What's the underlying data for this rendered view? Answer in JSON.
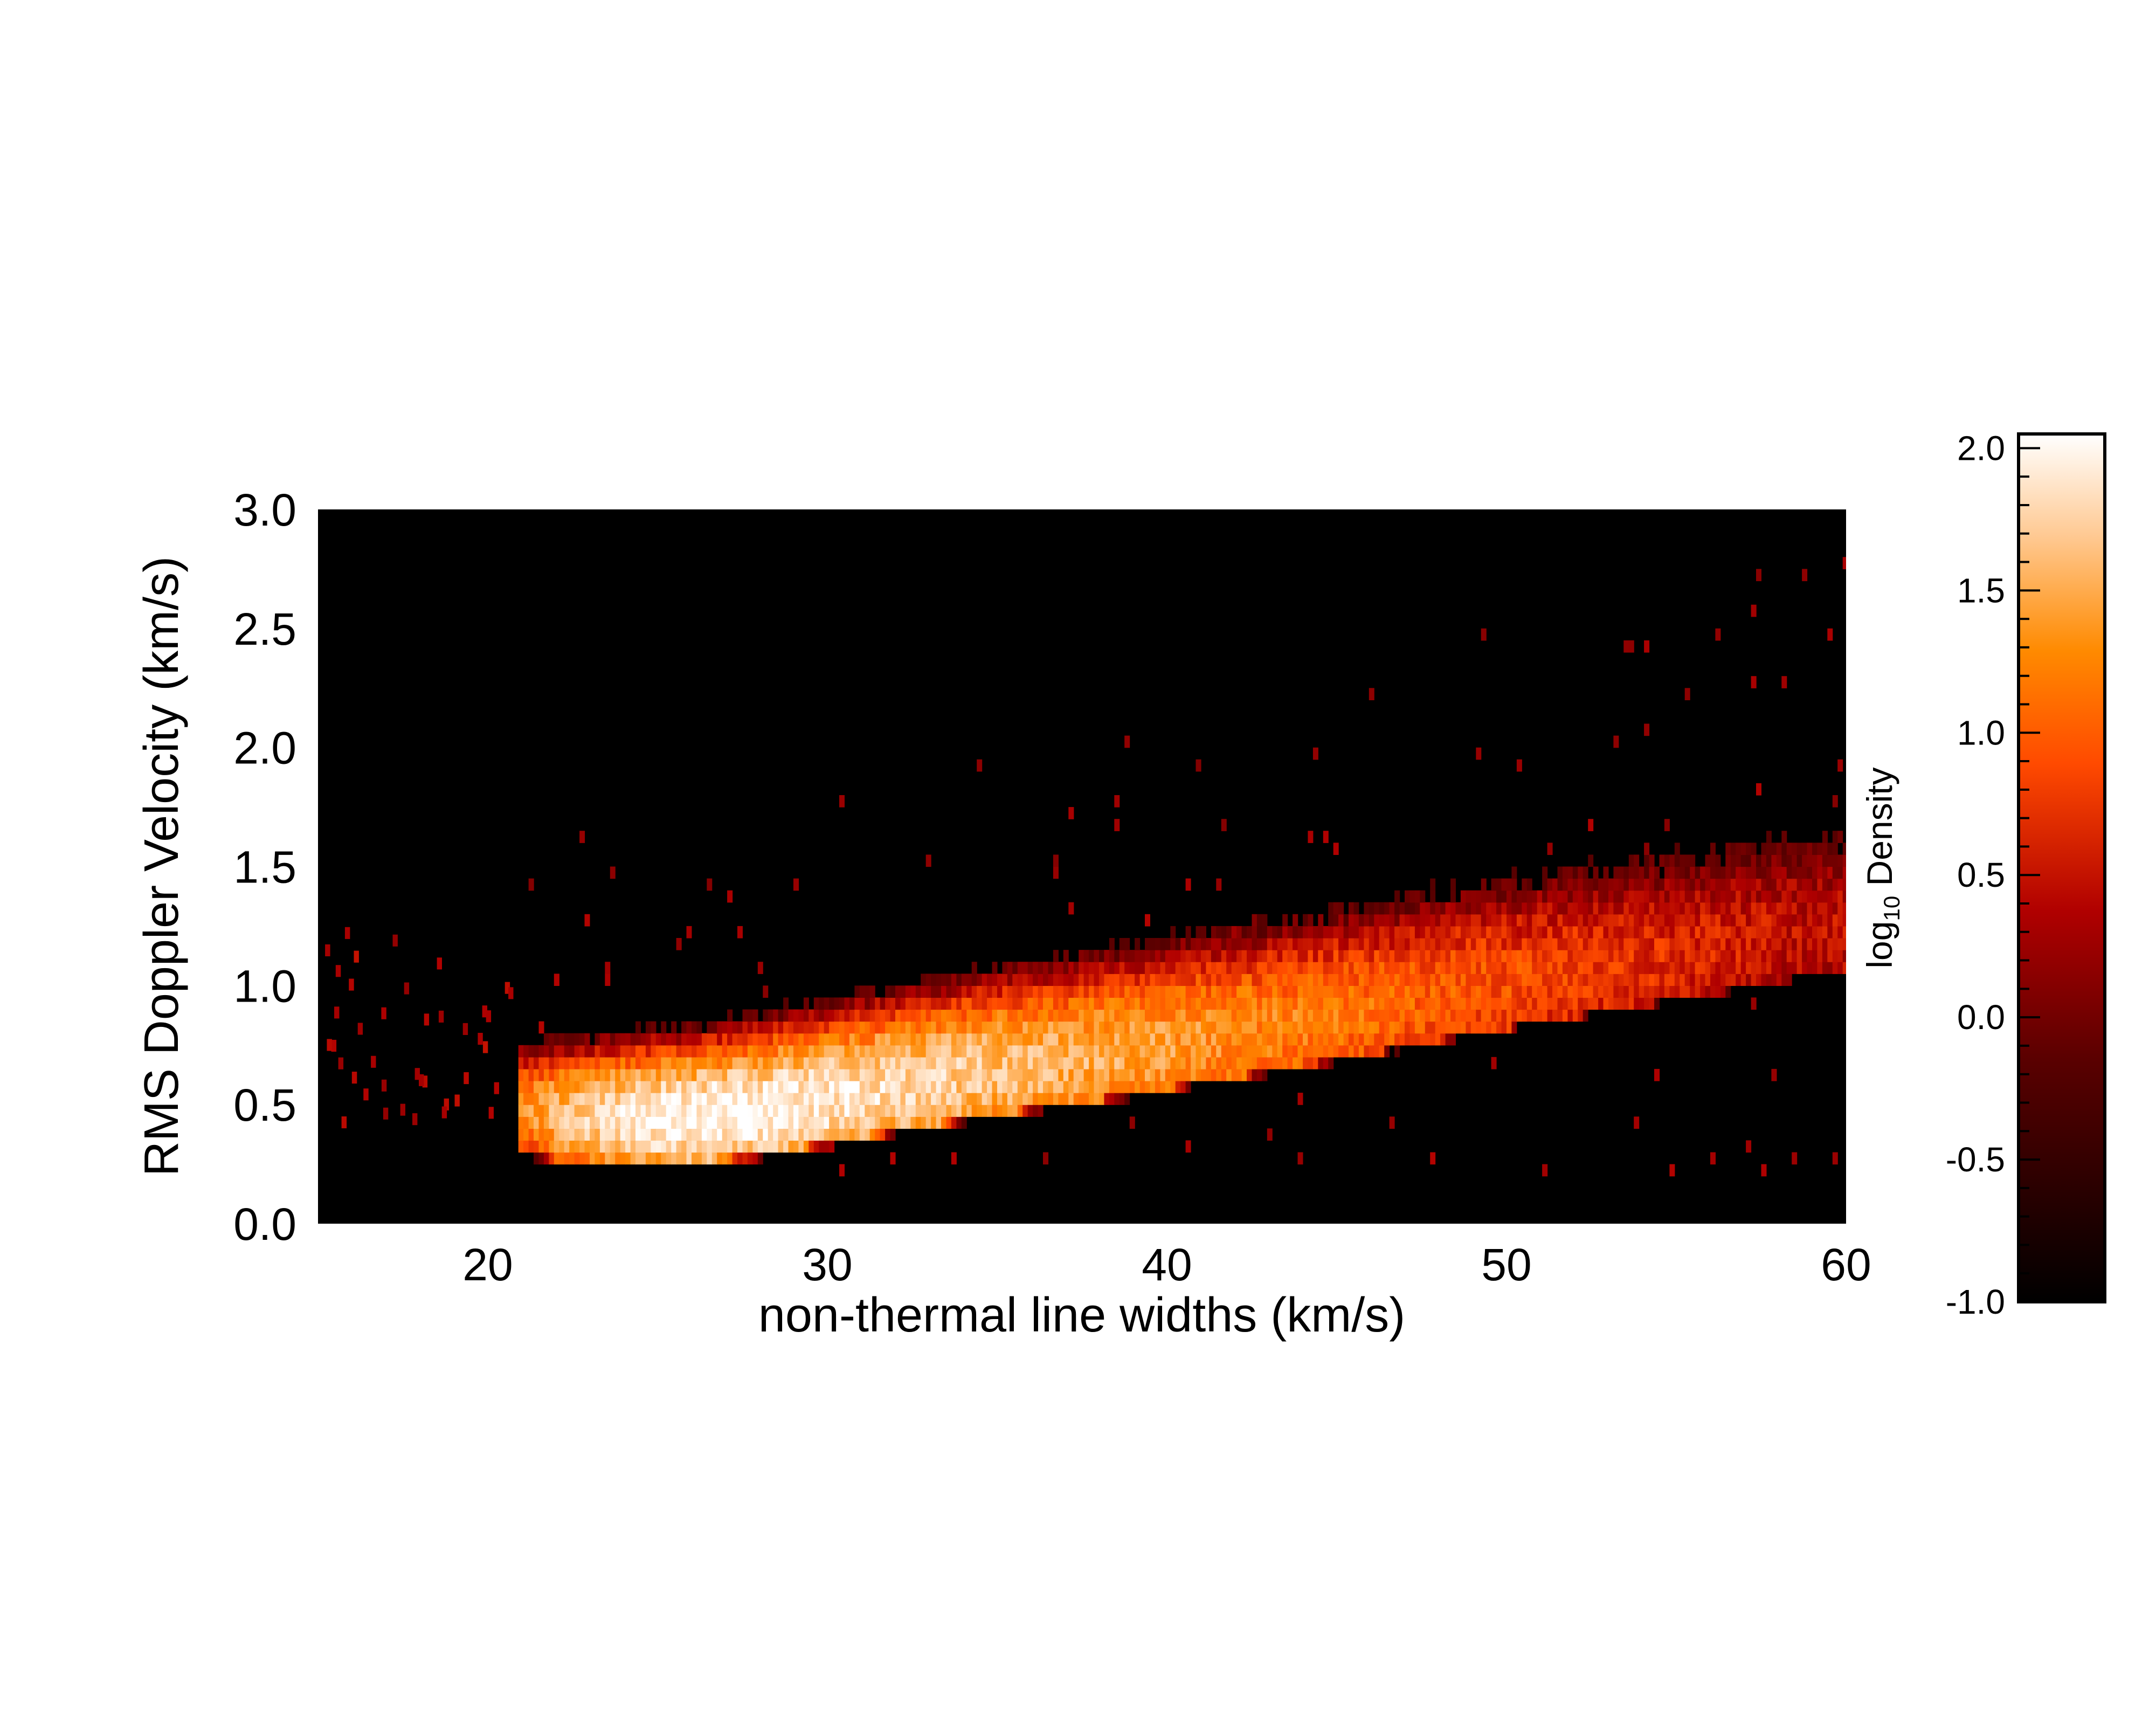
{
  "chart_data": {
    "type": "heatmap",
    "title": "",
    "xlabel": "non-thermal line widths (km/s)",
    "ylabel": "RMS Doppler Velocity (km/s)",
    "xlim": [
      15,
      60
    ],
    "ylim": [
      0,
      3.0
    ],
    "xticks": [
      "20",
      "30",
      "40",
      "50",
      "60"
    ],
    "yticks": [
      "0.0",
      "0.5",
      "1.0",
      "1.5",
      "2.0",
      "2.5",
      "3.0"
    ],
    "background": "#000000",
    "colorbar": {
      "label_main": "log",
      "label_sub": "10",
      "label_tail": "Density",
      "range": [
        -1.0,
        2.05
      ],
      "ticks": [
        "-1.0",
        "-0.5",
        "0.0",
        "0.5",
        "1.0",
        "1.5",
        "2.0"
      ],
      "colormap": "hot (black-red-orange-white)"
    },
    "ridge": {
      "description_values": "peak log10 density along x",
      "x": [
        21,
        22,
        24,
        26,
        28,
        30,
        32,
        35,
        38,
        41,
        44,
        47,
        50,
        53,
        56,
        59
      ],
      "y_center": [
        0.45,
        0.43,
        0.42,
        0.42,
        0.45,
        0.5,
        0.55,
        0.62,
        0.68,
        0.75,
        0.82,
        0.9,
        0.98,
        1.05,
        1.12,
        1.2
      ],
      "peak_log_density": [
        1.3,
        1.6,
        1.9,
        2.0,
        2.0,
        1.9,
        1.8,
        1.65,
        1.5,
        1.35,
        1.2,
        1.05,
        0.9,
        0.75,
        0.6,
        0.45
      ]
    }
  }
}
